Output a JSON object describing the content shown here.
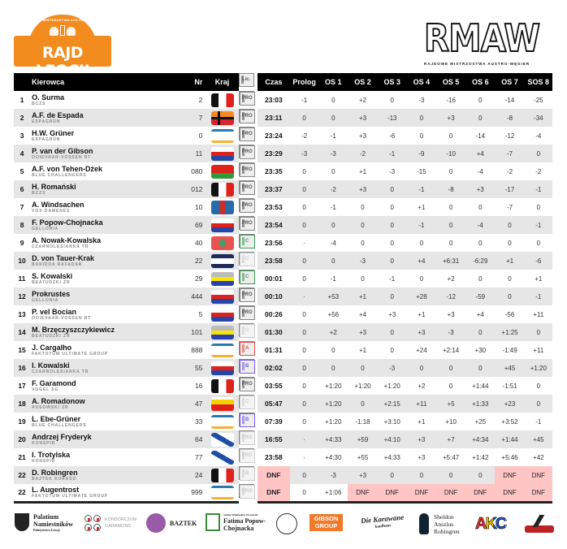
{
  "header": {
    "left_logo": {
      "title": "RAJD LEOCJI",
      "arc_text": "RAJDOWE MISTRZOSTWA AUSTRO-WĘGIER"
    },
    "right_logo": {
      "title": "RMAW",
      "subtitle": "RAJDOWE MISTRZOSTWA AUSTRO-WĘGIER"
    }
  },
  "table": {
    "columns": [
      "",
      "Kierowca",
      "Nr",
      "Kraj",
      "Lic.",
      "Czas",
      "Prolog",
      "OS 1",
      "OS 2",
      "OS 3",
      "OS 4",
      "OS 5",
      "OS 6",
      "OS 7",
      "SOS 8"
    ],
    "dnf_color": "#ffc5c5",
    "rows": [
      {
        "pos": "1",
        "name": "O. Surma",
        "team": "BCZS",
        "nr": "2",
        "flag": "fr",
        "lic": "PRO",
        "time": "23:03",
        "stages": [
          "-1",
          "0",
          "+2",
          "0",
          "-3",
          "-16",
          "0",
          "-14",
          "-25"
        ]
      },
      {
        "pos": "2",
        "name": "A.F. de Espada",
        "team": "ESPAGRÜN",
        "nr": "7",
        "flag": "nordic",
        "lic": "PRO",
        "time": "23:11",
        "stages": [
          "0",
          "0",
          "+3",
          "-13",
          "0",
          "+3",
          "0",
          "-8",
          "-34"
        ]
      },
      {
        "pos": "3",
        "name": "H.W. Grüner",
        "team": "ESPAGRÜN",
        "nr": "0",
        "flag": "snow",
        "lic": "PRO",
        "time": "23:24",
        "stages": [
          "-2",
          "-1",
          "+3",
          "-6",
          "0",
          "0",
          "-14",
          "-12",
          "-4"
        ]
      },
      {
        "pos": "4",
        "name": "P. van der Gibson",
        "team": "OOIEVAAR-VOSSEN RT",
        "nr": "11",
        "flag": "crest",
        "lic": "PRO",
        "time": "23:29",
        "stages": [
          "-3",
          "-3",
          "-2",
          "-1",
          "-9",
          "-10",
          "+4",
          "-7",
          "0"
        ]
      },
      {
        "pos": "5",
        "name": "A.F. von Tehen-Dżek",
        "team": "BLUE CHALLENGERS",
        "nr": "080",
        "flag": "redgreen",
        "lic": "PRO",
        "time": "23:35",
        "stages": [
          "0",
          "0",
          "+1",
          "-3",
          "-15",
          "0",
          "-4",
          "-2",
          "-2"
        ]
      },
      {
        "pos": "6",
        "name": "H. Romański",
        "team": "BCZS",
        "nr": "012",
        "flag": "fr",
        "lic": "PRO",
        "time": "23:37",
        "stages": [
          "0",
          "-2",
          "+3",
          "0",
          "-1",
          "-8",
          "+3",
          "-17",
          "-1"
        ]
      },
      {
        "pos": "7",
        "name": "A. Windsachen",
        "team": "VOX-DAMENES",
        "nr": "10",
        "flag": "cross",
        "lic": "PRO",
        "time": "23:53",
        "stages": [
          "0",
          "-1",
          "0",
          "0",
          "+1",
          "0",
          "0",
          "-7",
          "0"
        ]
      },
      {
        "pos": "8",
        "name": "F. Popow-Chojnacka",
        "team": "GELLONIA",
        "nr": "69",
        "flag": "crest",
        "lic": "PRO",
        "time": "23:54",
        "stages": [
          "0",
          "0",
          "0",
          "0",
          "-1",
          "0",
          "-4",
          "0",
          "-1"
        ]
      },
      {
        "pos": "9",
        "name": "A. Nowak-Kowalska",
        "team": "CZARNOLESIANKA TR",
        "nr": "40",
        "flag": "dot",
        "lic": "C",
        "time": "23:56",
        "stages": [
          "·",
          "-4",
          "0",
          "0",
          "0",
          "0",
          "0",
          "0",
          "0"
        ]
      },
      {
        "pos": "10",
        "name": "D. von Tauer-Krak",
        "team": "BARIDDA RAFADAR",
        "nr": "22",
        "flag": "navy",
        "lic": "C-faded",
        "time": "23:58",
        "stages": [
          "0",
          "0",
          "-3",
          "0",
          "+4",
          "+6:31",
          "-6:29",
          "+1",
          "-6"
        ]
      },
      {
        "pos": "11",
        "name": "S. Kowalski",
        "team": "BEATUDZKI ZR",
        "nr": "29",
        "flag": "gyb",
        "lic": "C",
        "time": "00:01",
        "stages": [
          "0",
          "-1",
          "0",
          "-1",
          "0",
          "+2",
          "0",
          "0",
          "+1"
        ]
      },
      {
        "pos": "12",
        "name": "Prokrustes",
        "team": "GELLONIA",
        "nr": "444",
        "flag": "crest",
        "lic": "PRO",
        "time": "00:10",
        "stages": [
          "·",
          "+53",
          "+1",
          "0",
          "+28",
          "-12",
          "-59",
          "0",
          "-1"
        ]
      },
      {
        "pos": "13",
        "name": "P. vel Bocian",
        "team": "OOIEVAAR-VOSSEN RT",
        "nr": "5",
        "flag": "crest",
        "lic": "PRO",
        "time": "00:26",
        "stages": [
          "0",
          "+56",
          "+4",
          "+3",
          "+1",
          "+3",
          "+4",
          "-56",
          "+11"
        ]
      },
      {
        "pos": "14",
        "name": "M. Brzęczyszczykiewicz",
        "team": "BEATUDZKI ZR",
        "nr": "101",
        "flag": "gyb",
        "lic": "C-faded",
        "time": "01:30",
        "stages": [
          "0",
          "+2",
          "+3",
          "0",
          "+3",
          "-3",
          "0",
          "+1:25",
          "0"
        ]
      },
      {
        "pos": "15",
        "name": "J. Cargalho",
        "team": "FAKTOTUM ULTIMATE GROUP",
        "nr": "888",
        "flag": "snow",
        "lic": "A",
        "time": "01:31",
        "stages": [
          "0",
          "0",
          "+1",
          "0",
          "+24",
          "+2:14",
          "+30",
          "-1:49",
          "+11"
        ]
      },
      {
        "pos": "16",
        "name": "I. Kowalski",
        "team": "CZARNOLESIANKA TR",
        "nr": "55",
        "flag": "crest",
        "lic": "B",
        "time": "02:02",
        "stages": [
          "0",
          "0",
          "0",
          "-3",
          "0",
          "0",
          "0",
          "+45",
          "+1:20"
        ]
      },
      {
        "pos": "17",
        "name": "F. Garamond",
        "team": "VOGEL SG",
        "nr": "16",
        "flag": "fr",
        "lic": "PRO",
        "time": "03:55",
        "stages": [
          "0",
          "+1:20",
          "+1:20",
          "+1:20",
          "+2",
          "0",
          "+1:44",
          "-1:51",
          "0"
        ]
      },
      {
        "pos": "18",
        "name": "A. Romadonow",
        "team": "RUSOWSKI ZR",
        "nr": "47",
        "flag": "yr",
        "lic": "C-faded",
        "time": "05:47",
        "stages": [
          "0",
          "+1:20",
          "0",
          "+2:15",
          "+11",
          "+5",
          "+1:33",
          "+23",
          "0"
        ]
      },
      {
        "pos": "19",
        "name": "L. Ebe-Grüner",
        "team": "BLUE CHALLENGERS",
        "nr": "33",
        "flag": "snow",
        "lic": "B",
        "time": "07:39",
        "stages": [
          "0",
          "+1:20",
          "-1:18",
          "+3:10",
          "+1",
          "+10",
          "+25",
          "+3:52",
          "-1"
        ]
      },
      {
        "pos": "20",
        "name": "Andrzej Fryderyk",
        "team": "KONSPIR",
        "nr": "64",
        "flag": "diag",
        "lic": "PRO-faded",
        "time": "16:55",
        "stages": [
          "·",
          "+4:33",
          "+59",
          "+4:10",
          "+3",
          "+7",
          "+4:34",
          "+1:44",
          "+45"
        ]
      },
      {
        "pos": "21",
        "name": "I. Trotylska",
        "team": "KONSPIR",
        "nr": "77",
        "flag": "diag",
        "lic": "PRO-faded",
        "time": "23:58",
        "stages": [
          "·",
          "+4:30",
          "+55",
          "+4:33",
          "+3",
          "+5:47",
          "+1:42",
          "+5:46",
          "+42"
        ]
      },
      {
        "pos": "22",
        "name": "D. Robingren",
        "team": "BAZTEK KURADO",
        "nr": "24",
        "flag": "fr",
        "lic": "B-faded",
        "time": "DNF",
        "stages": [
          "0",
          "-3",
          "+3",
          "0",
          "0",
          "0",
          "0",
          "DNF",
          "DNF"
        ]
      },
      {
        "pos": "22",
        "name": "L. Augentrost",
        "team": "FAKTOTUM ULTIMATE GROUP",
        "nr": "999",
        "flag": "snow",
        "lic": "PRO-faded",
        "time": "DNF",
        "stages": [
          "0",
          "+1:06",
          "DNF",
          "DNF",
          "DNF",
          "DNF",
          "DNF",
          "DNF",
          "DNF"
        ]
      }
    ]
  },
  "sponsors": [
    {
      "name": "Palatium Namiestników",
      "sub": "Pałatyństwa Leocji"
    },
    {
      "name": "KONSORCJUM GARAMOND"
    },
    {
      "name": "BAZTEK"
    },
    {
      "name": "Fatima Popow-Chojnacka",
      "sub": "Jaśnie Wielmożna Wysokość"
    },
    {
      "name": "GIBSON GROUP"
    },
    {
      "name": "Die Karawane",
      "sub": "kaufhaus"
    },
    {
      "name": "Sheldon Anszlus Robingren"
    },
    {
      "name": "AKC"
    }
  ]
}
